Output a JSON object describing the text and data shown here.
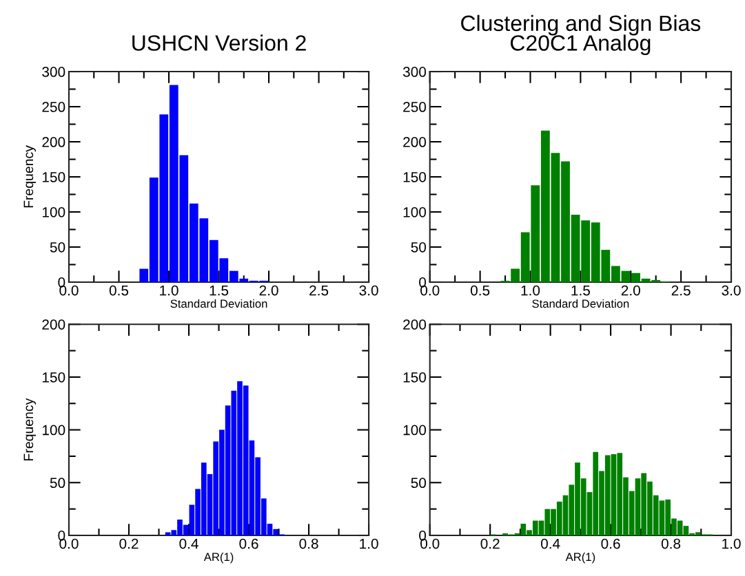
{
  "chart_data": [
    {
      "type": "histogram",
      "title": "USHCN Version 2",
      "xlabel": "Standard Deviation",
      "ylabel": "Frequency",
      "color": "#0000ff",
      "bins": [
        0.7,
        0.8,
        0.9,
        1.0,
        1.1,
        1.2,
        1.3,
        1.4,
        1.5,
        1.6,
        1.7,
        1.8,
        1.9,
        2.0
      ],
      "values": [
        19,
        149,
        239,
        281,
        181,
        112,
        91,
        60,
        34,
        16,
        5,
        2,
        2
      ],
      "xlim": [
        0,
        3
      ],
      "ylim": [
        0,
        300
      ],
      "xticks": [
        {
          "value": 0,
          "label": "0.0"
        },
        {
          "value": 0.5,
          "label": "0.5"
        },
        {
          "value": 1,
          "label": "1.0"
        },
        {
          "value": 1.5,
          "label": "1.5"
        },
        {
          "value": 2,
          "label": "2.0"
        },
        {
          "value": 2.5,
          "label": "2.5"
        },
        {
          "value": 3,
          "label": "3.0"
        },
        {
          "value": 0.25,
          "label": null
        },
        {
          "value": 0.75,
          "label": null
        },
        {
          "value": 1.25,
          "label": null
        },
        {
          "value": 1.75,
          "label": null
        },
        {
          "value": 2.25,
          "label": null
        },
        {
          "value": 2.75,
          "label": null
        }
      ],
      "yticks": [
        0,
        50,
        100,
        150,
        200,
        250,
        300,
        {
          "value": 25,
          "label": null
        },
        {
          "value": 75,
          "label": null
        },
        {
          "value": 125,
          "label": null
        },
        {
          "value": 175,
          "label": null
        },
        {
          "value": 225,
          "label": null
        },
        {
          "value": 275,
          "label": null
        }
      ]
    },
    {
      "type": "histogram",
      "title": "Clustering and Sign Bias\nC20C1 Analog",
      "xlabel": "Standard Deviation",
      "color": "#008000",
      "bins": [
        0.7,
        0.8,
        0.9,
        1.0,
        1.1,
        1.2,
        1.3,
        1.4,
        1.5,
        1.6,
        1.7,
        1.8,
        1.9,
        2.0,
        2.1,
        2.2,
        2.3,
        2.4
      ],
      "values": [
        2,
        19,
        71,
        138,
        216,
        184,
        172,
        96,
        88,
        85,
        46,
        23,
        16,
        13,
        5,
        3,
        1
      ],
      "xlim": [
        0,
        3
      ],
      "ylim": [
        0,
        300
      ],
      "xticks": [
        {
          "value": 0,
          "label": "0.0"
        },
        {
          "value": 0.5,
          "label": "0.5"
        },
        {
          "value": 1,
          "label": "1.0"
        },
        {
          "value": 1.5,
          "label": "1.5"
        },
        {
          "value": 2,
          "label": "2.0"
        },
        {
          "value": 2.5,
          "label": "2.5"
        },
        {
          "value": 3,
          "label": "3.0"
        },
        {
          "value": 0.25,
          "label": null
        },
        {
          "value": 0.75,
          "label": null
        },
        {
          "value": 1.25,
          "label": null
        },
        {
          "value": 1.75,
          "label": null
        },
        {
          "value": 2.25,
          "label": null
        },
        {
          "value": 2.75,
          "label": null
        }
      ],
      "yticks": [
        0,
        50,
        100,
        150,
        200,
        250,
        300,
        {
          "value": 25,
          "label": null
        },
        {
          "value": 75,
          "label": null
        },
        {
          "value": 125,
          "label": null
        },
        {
          "value": 175,
          "label": null
        },
        {
          "value": 225,
          "label": null
        },
        {
          "value": 275,
          "label": null
        }
      ]
    },
    {
      "type": "histogram",
      "xlabel": "AR(1)",
      "ylabel": "Frequency",
      "color": "#0000ff",
      "bins": [
        0.32,
        0.34,
        0.36,
        0.38,
        0.4,
        0.42,
        0.44,
        0.46,
        0.48,
        0.5,
        0.52,
        0.54,
        0.56,
        0.58,
        0.6,
        0.62,
        0.64,
        0.66,
        0.68,
        0.7,
        0.72
      ],
      "values": [
        3,
        5,
        15,
        10,
        29,
        44,
        69,
        58,
        89,
        100,
        123,
        137,
        146,
        142,
        90,
        74,
        35,
        11,
        6,
        1
      ],
      "xlim": [
        0,
        1
      ],
      "ylim": [
        0,
        200
      ],
      "xticks": [
        {
          "value": 0,
          "label": "0.0"
        },
        {
          "value": 0.2,
          "label": "0.2"
        },
        {
          "value": 0.4,
          "label": "0.4"
        },
        {
          "value": 0.6,
          "label": "0.6"
        },
        {
          "value": 0.8,
          "label": "0.8"
        },
        {
          "value": 1,
          "label": "1.0"
        },
        {
          "value": 0.1,
          "label": null
        },
        {
          "value": 0.3,
          "label": null
        },
        {
          "value": 0.5,
          "label": null
        },
        {
          "value": 0.7,
          "label": null
        },
        {
          "value": 0.9,
          "label": null
        }
      ],
      "yticks": [
        0,
        50,
        100,
        150,
        200,
        {
          "value": 25,
          "label": null
        },
        {
          "value": 75,
          "label": null
        },
        {
          "value": 125,
          "label": null
        },
        {
          "value": 175,
          "label": null
        }
      ]
    },
    {
      "type": "histogram",
      "xlabel": "AR(1)",
      "color": "#008000",
      "bins": [
        0.2,
        0.22,
        0.24,
        0.26,
        0.28,
        0.3,
        0.32,
        0.34,
        0.36,
        0.38,
        0.4,
        0.42,
        0.44,
        0.46,
        0.48,
        0.5,
        0.52,
        0.54,
        0.56,
        0.58,
        0.6,
        0.62,
        0.64,
        0.66,
        0.68,
        0.7,
        0.72,
        0.74,
        0.76,
        0.78,
        0.8,
        0.82,
        0.84,
        0.86,
        0.88,
        0.9,
        0.92,
        0.94
      ],
      "values": [
        1,
        0,
        2,
        1,
        2,
        11,
        5,
        14,
        14,
        25,
        25,
        32,
        38,
        48,
        69,
        54,
        41,
        79,
        61,
        76,
        77,
        78,
        55,
        42,
        54,
        59,
        51,
        38,
        33,
        34,
        16,
        14,
        9,
        2,
        3,
        1,
        1
      ],
      "xlim": [
        0,
        1
      ],
      "ylim": [
        0,
        200
      ],
      "xticks": [
        {
          "value": 0,
          "label": "0.0"
        },
        {
          "value": 0.2,
          "label": "0.2"
        },
        {
          "value": 0.4,
          "label": "0.4"
        },
        {
          "value": 0.6,
          "label": "0.6"
        },
        {
          "value": 0.8,
          "label": "0.8"
        },
        {
          "value": 1,
          "label": "1.0"
        },
        {
          "value": 0.1,
          "label": null
        },
        {
          "value": 0.3,
          "label": null
        },
        {
          "value": 0.5,
          "label": null
        },
        {
          "value": 0.7,
          "label": null
        },
        {
          "value": 0.9,
          "label": null
        }
      ],
      "yticks": [
        0,
        50,
        100,
        150,
        200,
        {
          "value": 25,
          "label": null
        },
        {
          "value": 75,
          "label": null
        },
        {
          "value": 125,
          "label": null
        },
        {
          "value": 175,
          "label": null
        }
      ]
    }
  ]
}
